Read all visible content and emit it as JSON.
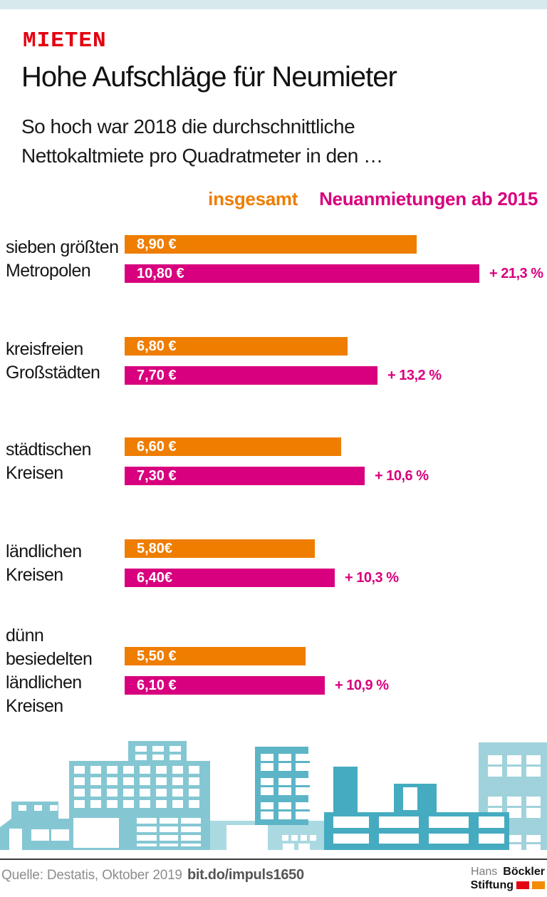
{
  "header": {
    "kicker": "MIETEN",
    "title": "Hohe Aufschläge für Neumieter",
    "subtitle_lines": [
      "So hoch war 2018 die durchschnittliche",
      "Nettokaltmiete pro Quadratmeter in den …"
    ]
  },
  "legend": {
    "insgesamt": "insgesamt",
    "neuanmietungen": "Neuanmietungen ab 2015"
  },
  "chart_data": {
    "type": "bar",
    "orientation": "horizontal",
    "unit": "Euro pro Quadratmeter Nettokaltmiete, 2018",
    "series": [
      "insgesamt",
      "Neuanmietungen ab 2015"
    ],
    "axis": {
      "value_min": 0,
      "no_visible_axis": true
    },
    "groups": [
      {
        "category_lines": [
          "sieben größten",
          "Metropolen"
        ],
        "insgesamt_value": 8.9,
        "insgesamt_label": "8,90 €",
        "neu_value": 10.8,
        "neu_label": "10,80 €",
        "delta_label": "+ 21,3 %"
      },
      {
        "category_lines": [
          "kreisfreien",
          "Großstädten"
        ],
        "insgesamt_value": 6.8,
        "insgesamt_label": "6,80 €",
        "neu_value": 7.7,
        "neu_label": "7,70 €",
        "delta_label": "+ 13,2 %"
      },
      {
        "category_lines": [
          "städtischen",
          "Kreisen"
        ],
        "insgesamt_value": 6.6,
        "insgesamt_label": "6,60 €",
        "neu_value": 7.3,
        "neu_label": "7,30 €",
        "delta_label": "+ 10,6 %"
      },
      {
        "category_lines": [
          "ländlichen",
          "Kreisen"
        ],
        "insgesamt_value": 5.8,
        "insgesamt_label": "5,80€",
        "neu_value": 6.4,
        "neu_label": "6,40€",
        "delta_label": "+ 10,3 %"
      },
      {
        "category_lines": [
          "dünn",
          "besiedelten",
          "ländlichen",
          "Kreisen"
        ],
        "insgesamt_value": 5.5,
        "insgesamt_label": "5,50 €",
        "neu_value": 6.1,
        "neu_label": "6,10 €",
        "delta_label": "+ 10,9 %"
      }
    ]
  },
  "colors": {
    "accent_red": "#e3000f",
    "orange": "#ee7d00",
    "magenta": "#d8007e",
    "header_band": "#d7e9ed",
    "skyline_light": "#abd9e1",
    "skyline_light2": "#9fd2db",
    "skyline_mid": "#84c7d3",
    "skyline_mid2": "#5cb5c7",
    "skyline_dark": "#45abc0",
    "logo_red": "#e30613",
    "logo_orange": "#f28c00"
  },
  "footer": {
    "source": "Quelle: Destatis, Oktober 2019",
    "link": "bit.do/impuls1650",
    "logo_line1_regular": "Hans",
    "logo_line1_bold": "Böckler",
    "logo_line2_bold": "Stiftung"
  }
}
